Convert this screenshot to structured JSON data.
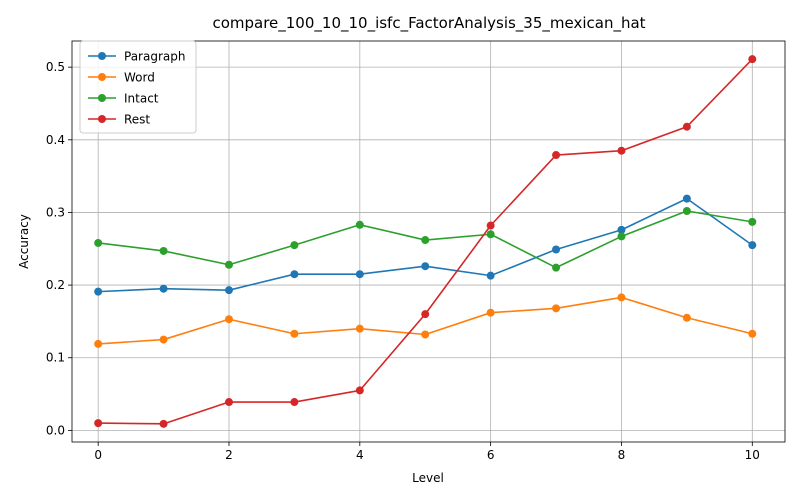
{
  "chart_data": {
    "type": "line",
    "title": "compare_100_10_10_isfc_FactorAnalysis_35_mexican_hat",
    "xlabel": "Level",
    "ylabel": "Accuracy",
    "x": [
      0,
      1,
      2,
      3,
      4,
      5,
      6,
      7,
      8,
      9,
      10
    ],
    "xlim": [
      -0.4,
      10.5
    ],
    "ylim": [
      -0.016,
      0.536
    ],
    "xticks": [
      0,
      2,
      4,
      6,
      8,
      10
    ],
    "xtick_labels": [
      "0",
      "2",
      "4",
      "6",
      "8",
      "10"
    ],
    "yticks": [
      0.0,
      0.1,
      0.2,
      0.3,
      0.4,
      0.5
    ],
    "ytick_labels": [
      "0.0",
      "0.1",
      "0.2",
      "0.3",
      "0.4",
      "0.5"
    ],
    "grid": true,
    "legend_position": "upper-left",
    "series": [
      {
        "name": "Paragraph",
        "color": "#1f77b4",
        "values": [
          0.191,
          0.195,
          0.193,
          0.215,
          0.215,
          0.226,
          0.213,
          0.249,
          0.276,
          0.319,
          0.255
        ]
      },
      {
        "name": "Word",
        "color": "#ff7f0e",
        "values": [
          0.119,
          0.125,
          0.153,
          0.133,
          0.14,
          0.132,
          0.162,
          0.168,
          0.183,
          0.155,
          0.133
        ]
      },
      {
        "name": "Intact",
        "color": "#2ca02c",
        "values": [
          0.258,
          0.247,
          0.228,
          0.255,
          0.283,
          0.262,
          0.27,
          0.224,
          0.267,
          0.302,
          0.287
        ]
      },
      {
        "name": "Rest",
        "color": "#d62728",
        "values": [
          0.01,
          0.009,
          0.039,
          0.039,
          0.055,
          0.16,
          0.282,
          0.379,
          0.385,
          0.418,
          0.511
        ]
      }
    ]
  }
}
